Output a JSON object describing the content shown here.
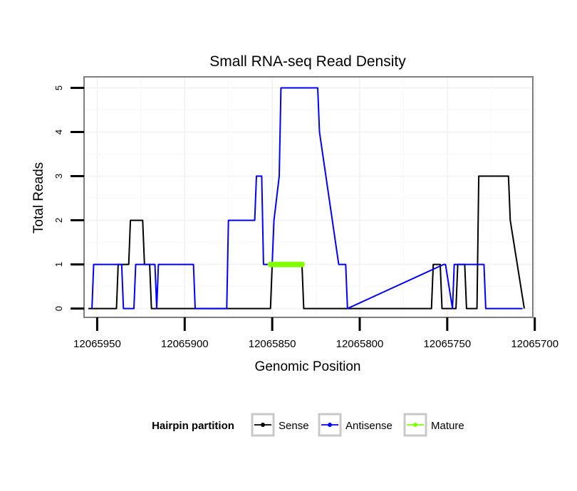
{
  "chart_data": {
    "type": "line",
    "title": "Small RNA-seq Read Density",
    "xlabel": "Genomic Position",
    "ylabel": "Total Reads",
    "xlim": [
      12065701.1,
      12065957.5
    ],
    "ylim": [
      -0.2,
      5.25
    ],
    "x_reversed": true,
    "grid": true,
    "x_ticks": [
      12065950,
      12065900,
      12065850,
      12065800,
      12065750,
      12065700
    ],
    "x_tick_labels": [
      "12065950",
      "12065900",
      "12065850",
      "12065800",
      "12065750",
      "12065700"
    ],
    "y_ticks": [
      0,
      1,
      2,
      3,
      4,
      5
    ],
    "y_tick_labels": [
      "0",
      "1",
      "2",
      "3",
      "4",
      "5"
    ],
    "legend": {
      "title": "Hairpin partition",
      "position": "bottom",
      "entries": [
        "Sense",
        "Antisense",
        "Mature"
      ]
    },
    "series": [
      {
        "name": "Sense",
        "color": "#000000",
        "x": [
          12065955,
          12065939,
          12065938,
          12065932,
          12065931,
          12065924,
          12065923,
          12065920,
          12065919,
          12065913,
          12065912,
          12065886,
          12065885,
          12065851,
          12065850,
          12065833,
          12065832,
          12065759,
          12065758,
          12065754,
          12065753,
          12065745,
          12065744,
          12065740,
          12065739,
          12065733,
          12065732,
          12065715,
          12065714,
          12065706
        ],
        "values": [
          0,
          0,
          1,
          1,
          2,
          2,
          1,
          1,
          0,
          0,
          0,
          0,
          0,
          0,
          1,
          1,
          0,
          0,
          1,
          1,
          0,
          0,
          1,
          1,
          0,
          0,
          3,
          3,
          2,
          0
        ]
      },
      {
        "name": "Antisense",
        "color": "#0000ff",
        "x": [
          12065953,
          12065952,
          12065936,
          12065935,
          12065929,
          12065928,
          12065917,
          12065916,
          12065915,
          12065895,
          12065894,
          12065876,
          12065875,
          12065860,
          12065859,
          12065856,
          12065855,
          12065850,
          12065849,
          12065846,
          12065845,
          12065842,
          12065841,
          12065824,
          12065823,
          12065812,
          12065808,
          12065807,
          12065752,
          12065751,
          12065747,
          12065746,
          12065729,
          12065728,
          12065707
        ],
        "values": [
          0,
          1,
          1,
          0,
          0,
          1,
          1,
          0,
          1,
          1,
          0,
          0,
          2,
          2,
          3,
          3,
          1,
          1,
          2,
          3,
          5,
          5,
          5,
          5,
          4,
          1,
          1,
          0,
          1,
          1,
          0,
          1,
          1,
          0,
          0
        ]
      },
      {
        "name": "Mature",
        "color": "#7fff00",
        "x": [
          12065851,
          12065833
        ],
        "values": [
          1,
          1
        ]
      }
    ]
  }
}
